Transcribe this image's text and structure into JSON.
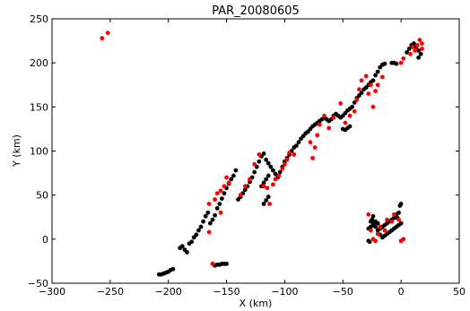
{
  "chart_data": {
    "type": "scatter",
    "title": "PAR_20080605",
    "xlabel": "X (km)",
    "ylabel": "Y (km)",
    "xlim": [
      -300,
      50
    ],
    "ylim": [
      -50,
      250
    ],
    "xticks": [
      -300,
      -250,
      -200,
      -150,
      -100,
      -50,
      0,
      50
    ],
    "yticks": [
      -50,
      0,
      50,
      100,
      150,
      200,
      250
    ],
    "xtick_labels": [
      "−300",
      "−250",
      "−200",
      "−150",
      "−100",
      "−50",
      "0",
      "50"
    ],
    "ytick_labels": [
      "−50",
      "0",
      "50",
      "100",
      "150",
      "200",
      "250"
    ],
    "grid": false,
    "colors": {
      "series_1": "#000000",
      "series_2": "#ff0000"
    },
    "series": [
      {
        "color": "#000000",
        "points": [
          [
            -208,
            -40
          ],
          [
            -206,
            -40
          ],
          [
            -204,
            -39
          ],
          [
            -202,
            -38
          ],
          [
            -200,
            -37
          ],
          [
            -198,
            -35
          ],
          [
            -196,
            -34
          ],
          [
            -190,
            -10
          ],
          [
            -188,
            -8
          ],
          [
            -186,
            -12
          ],
          [
            -184,
            -15
          ],
          [
            -182,
            -5
          ],
          [
            -180,
            -3
          ],
          [
            -178,
            2
          ],
          [
            -176,
            5
          ],
          [
            -174,
            10
          ],
          [
            -172,
            14
          ],
          [
            -170,
            20
          ],
          [
            -168,
            26
          ],
          [
            -166,
            30
          ],
          [
            -164,
            18
          ],
          [
            -162,
            22
          ],
          [
            -160,
            27
          ],
          [
            -158,
            35
          ],
          [
            -156,
            40
          ],
          [
            -154,
            46
          ],
          [
            -152,
            52
          ],
          [
            -150,
            58
          ],
          [
            -148,
            63
          ],
          [
            -146,
            68
          ],
          [
            -144,
            72
          ],
          [
            -142,
            78
          ],
          [
            -160,
            -30
          ],
          [
            -158,
            -29
          ],
          [
            -156,
            -29
          ],
          [
            -154,
            -28
          ],
          [
            -152,
            -28
          ],
          [
            -150,
            -28
          ],
          [
            -140,
            45
          ],
          [
            -138,
            48
          ],
          [
            -136,
            52
          ],
          [
            -134,
            56
          ],
          [
            -132,
            60
          ],
          [
            -130,
            65
          ],
          [
            -128,
            70
          ],
          [
            -126,
            76
          ],
          [
            -124,
            82
          ],
          [
            -122,
            88
          ],
          [
            -120,
            94
          ],
          [
            -118,
            97
          ],
          [
            -116,
            90
          ],
          [
            -114,
            86
          ],
          [
            -112,
            82
          ],
          [
            -110,
            78
          ],
          [
            -108,
            74
          ],
          [
            -120,
            60
          ],
          [
            -118,
            64
          ],
          [
            -116,
            68
          ],
          [
            -114,
            72
          ],
          [
            -118,
            40
          ],
          [
            -116,
            44
          ],
          [
            -114,
            48
          ],
          [
            -106,
            70
          ],
          [
            -104,
            76
          ],
          [
            -102,
            82
          ],
          [
            -100,
            88
          ],
          [
            -98,
            92
          ],
          [
            -96,
            96
          ],
          [
            -94,
            100
          ],
          [
            -92,
            104
          ],
          [
            -90,
            106
          ],
          [
            -88,
            110
          ],
          [
            -86,
            114
          ],
          [
            -84,
            117
          ],
          [
            -82,
            120
          ],
          [
            -80,
            122
          ],
          [
            -78,
            125
          ],
          [
            -76,
            128
          ],
          [
            -74,
            130
          ],
          [
            -72,
            132
          ],
          [
            -70,
            134
          ],
          [
            -68,
            136
          ],
          [
            -66,
            138
          ],
          [
            -64,
            136
          ],
          [
            -62,
            134
          ],
          [
            -60,
            136
          ],
          [
            -58,
            140
          ],
          [
            -56,
            142
          ],
          [
            -54,
            140
          ],
          [
            -52,
            138
          ],
          [
            -50,
            140
          ],
          [
            -48,
            143
          ],
          [
            -46,
            146
          ],
          [
            -44,
            148
          ],
          [
            -50,
            125
          ],
          [
            -48,
            124
          ],
          [
            -46,
            126
          ],
          [
            -44,
            128
          ],
          [
            -42,
            150
          ],
          [
            -40,
            155
          ],
          [
            -38,
            160
          ],
          [
            -36,
            163
          ],
          [
            -34,
            166
          ],
          [
            -32,
            170
          ],
          [
            -30,
            172
          ],
          [
            -28,
            175
          ],
          [
            -26,
            178
          ],
          [
            -24,
            180
          ],
          [
            -22,
            186
          ],
          [
            -20,
            190
          ],
          [
            -18,
            195
          ],
          [
            -16,
            198
          ],
          [
            -14,
            199
          ],
          [
            -8,
            200
          ],
          [
            -6,
            200
          ],
          [
            -4,
            199
          ],
          [
            5,
            212
          ],
          [
            7,
            216
          ],
          [
            9,
            220
          ],
          [
            11,
            222
          ],
          [
            13,
            218
          ],
          [
            15,
            214
          ],
          [
            17,
            210
          ],
          [
            15,
            206
          ],
          [
            -28,
            -2
          ],
          [
            -27,
            -3
          ],
          [
            -26,
            20
          ],
          [
            -25,
            22
          ],
          [
            -24,
            26
          ],
          [
            -23,
            18
          ],
          [
            -22,
            14
          ],
          [
            -20,
            10
          ],
          [
            -18,
            12
          ],
          [
            -16,
            14
          ],
          [
            -14,
            16
          ],
          [
            -12,
            18
          ],
          [
            -10,
            20
          ],
          [
            -8,
            22
          ],
          [
            -6,
            24
          ],
          [
            -4,
            28
          ],
          [
            -2,
            30
          ],
          [
            -1,
            38
          ],
          [
            0,
            40
          ],
          [
            -18,
            5
          ],
          [
            -16,
            2
          ],
          [
            -14,
            4
          ],
          [
            -12,
            6
          ],
          [
            -10,
            8
          ],
          [
            -8,
            10
          ],
          [
            -6,
            12
          ],
          [
            -4,
            14
          ],
          [
            -2,
            16
          ],
          [
            0,
            18
          ],
          [
            -3,
            24
          ],
          [
            -20,
            18
          ],
          [
            -22,
            20
          ],
          [
            -24,
            16
          ],
          [
            -26,
            14
          ],
          [
            -28,
            12
          ]
        ]
      },
      {
        "color": "#ff0000",
        "points": [
          [
            -257,
            228
          ],
          [
            -252,
            234
          ],
          [
            -162,
            -28
          ],
          [
            -165,
            8
          ],
          [
            -165,
            40
          ],
          [
            -160,
            45
          ],
          [
            -158,
            52
          ],
          [
            -155,
            55
          ],
          [
            -152,
            60
          ],
          [
            -150,
            70
          ],
          [
            -148,
            64
          ],
          [
            -155,
            30
          ],
          [
            -138,
            50
          ],
          [
            -134,
            60
          ],
          [
            -130,
            68
          ],
          [
            -126,
            85
          ],
          [
            -122,
            96
          ],
          [
            -118,
            60
          ],
          [
            -115,
            58
          ],
          [
            -113,
            40
          ],
          [
            -110,
            62
          ],
          [
            -108,
            68
          ],
          [
            -105,
            72
          ],
          [
            -102,
            80
          ],
          [
            -100,
            85
          ],
          [
            -98,
            90
          ],
          [
            -96,
            98
          ],
          [
            -92,
            96
          ],
          [
            -78,
            110
          ],
          [
            -76,
            92
          ],
          [
            -74,
            104
          ],
          [
            -72,
            118
          ],
          [
            -70,
            130
          ],
          [
            -66,
            140
          ],
          [
            -62,
            126
          ],
          [
            -58,
            138
          ],
          [
            -52,
            154
          ],
          [
            -48,
            132
          ],
          [
            -44,
            140
          ],
          [
            -40,
            145
          ],
          [
            -38,
            158
          ],
          [
            -36,
            170
          ],
          [
            -34,
            180
          ],
          [
            -30,
            185
          ],
          [
            -28,
            165
          ],
          [
            -26,
            175
          ],
          [
            -24,
            150
          ],
          [
            -22,
            168
          ],
          [
            -20,
            175
          ],
          [
            -16,
            184
          ],
          [
            -28,
            28
          ],
          [
            -26,
            10
          ],
          [
            -24,
            0
          ],
          [
            -22,
            -2
          ],
          [
            -20,
            6
          ],
          [
            -18,
            14
          ],
          [
            -14,
            10
          ],
          [
            -12,
            22
          ],
          [
            -8,
            20
          ],
          [
            -6,
            28
          ],
          [
            -2,
            22
          ],
          [
            0,
            -2
          ],
          [
            2,
            0
          ],
          [
            0,
            200
          ],
          [
            2,
            205
          ],
          [
            8,
            210
          ],
          [
            10,
            218
          ],
          [
            12,
            214
          ],
          [
            14,
            220
          ],
          [
            16,
            226
          ],
          [
            18,
            222
          ],
          [
            18,
            216
          ]
        ]
      }
    ]
  }
}
